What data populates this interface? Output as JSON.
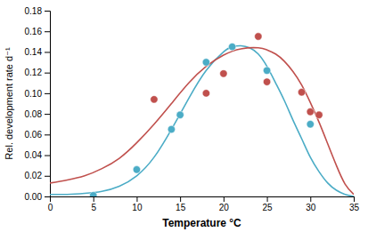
{
  "chart_data": {
    "type": "scatter",
    "xlabel": "Temperature °C",
    "ylabel": "Rel. development rate d⁻¹",
    "xlim": [
      0,
      35
    ],
    "ylim": [
      0,
      0.18
    ],
    "xticks": [
      0,
      5,
      10,
      15,
      20,
      25,
      30,
      35
    ],
    "yticks": [
      {
        "value": 0,
        "label": "0.00"
      },
      0.02,
      0.04,
      0.06,
      0.08,
      {
        "value": 0.1,
        "label": "0.10"
      },
      0.12,
      0.14,
      0.16,
      0.18
    ],
    "series": [
      {
        "type": "line",
        "color": "#4bacc6",
        "x": [
          0,
          2,
          4,
          6,
          8,
          10,
          12,
          14,
          16,
          18,
          20,
          21,
          22,
          23,
          24,
          25,
          26,
          27,
          28,
          29,
          30,
          31,
          32,
          33,
          34,
          35
        ],
        "values": [
          0.002,
          0.002,
          0.003,
          0.005,
          0.01,
          0.02,
          0.038,
          0.065,
          0.095,
          0.122,
          0.14,
          0.145,
          0.146,
          0.144,
          0.138,
          0.126,
          0.11,
          0.093,
          0.074,
          0.056,
          0.038,
          0.024,
          0.013,
          0.006,
          0.002,
          0.0
        ]
      },
      {
        "type": "line",
        "color": "#c0504d",
        "x": [
          0,
          2,
          4,
          6,
          8,
          10,
          12,
          14,
          16,
          18,
          20,
          22,
          24,
          25,
          26,
          27,
          28,
          29,
          30,
          31,
          32,
          33,
          34,
          35
        ],
        "values": [
          0.013,
          0.016,
          0.02,
          0.027,
          0.037,
          0.052,
          0.07,
          0.09,
          0.11,
          0.126,
          0.137,
          0.143,
          0.144,
          0.142,
          0.138,
          0.131,
          0.121,
          0.108,
          0.091,
          0.072,
          0.051,
          0.03,
          0.012,
          0.002
        ]
      },
      {
        "type": "scatter",
        "color": "#4bacc6",
        "x": [
          5,
          10,
          14,
          15,
          18,
          21,
          25,
          30
        ],
        "values": [
          0.001,
          0.026,
          0.065,
          0.079,
          0.13,
          0.145,
          0.122,
          0.07
        ]
      },
      {
        "type": "scatter",
        "color": "#c0504d",
        "x": [
          12,
          18,
          20,
          24,
          25,
          29,
          30,
          31
        ],
        "values": [
          0.094,
          0.1,
          0.119,
          0.155,
          0.111,
          0.101,
          0.082,
          0.079
        ]
      }
    ]
  }
}
